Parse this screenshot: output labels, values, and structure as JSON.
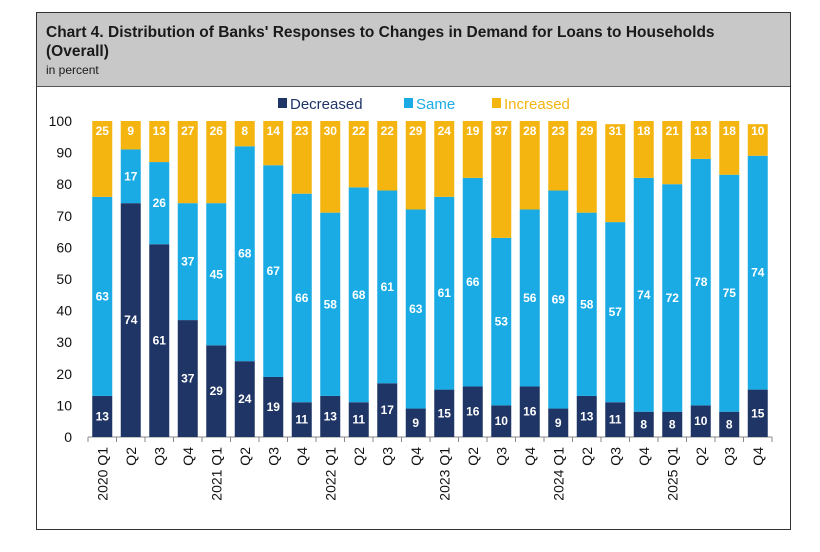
{
  "chart_data": {
    "type": "bar",
    "stacked": true,
    "title": "Chart 4. Distribution of Banks' Responses to Changes in Demand for Loans to Households (Overall)",
    "subtitle": "in percent",
    "categories": [
      "2020 Q1",
      "Q2",
      "Q3",
      "Q4",
      "2021 Q1",
      "Q2",
      "Q3",
      "Q4",
      "2022 Q1",
      "Q2",
      "Q3",
      "Q4",
      "2023 Q1",
      "Q2",
      "Q3",
      "Q4",
      "2024 Q1",
      "Q2",
      "Q3",
      "Q4",
      "2025 Q1",
      "Q2",
      "Q3",
      "Q4"
    ],
    "series": [
      {
        "name": "Decreased",
        "color": "#1f3566",
        "values": [
          13,
          74,
          61,
          37,
          29,
          24,
          19,
          11,
          13,
          11,
          17,
          9,
          15,
          16,
          10,
          16,
          9,
          13,
          11,
          8,
          8,
          10,
          8,
          15
        ]
      },
      {
        "name": "Same",
        "color": "#1aabe4",
        "values": [
          63,
          17,
          26,
          37,
          45,
          68,
          67,
          66,
          58,
          68,
          61,
          63,
          61,
          66,
          53,
          56,
          69,
          58,
          57,
          74,
          72,
          78,
          75,
          74
        ]
      },
      {
        "name": "Increased",
        "color": "#f5b511",
        "values": [
          25,
          9,
          13,
          27,
          26,
          8,
          14,
          23,
          30,
          22,
          22,
          29,
          24,
          19,
          37,
          28,
          23,
          29,
          31,
          18,
          21,
          13,
          18,
          10
        ]
      }
    ],
    "ylim": [
      0,
      100
    ],
    "yticks": [
      0,
      10,
      20,
      30,
      40,
      50,
      60,
      70,
      80,
      90,
      100
    ],
    "legend": "top-center",
    "grid": false,
    "xlabel": "",
    "ylabel": ""
  }
}
